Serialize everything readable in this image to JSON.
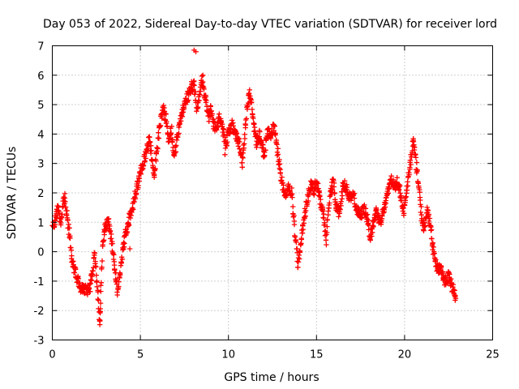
{
  "chart_data": {
    "type": "scatter",
    "title": "Day 053 of 2022, Sidereal Day-to-day VTEC variation (SDTVAR) for receiver lord",
    "xlabel": "GPS time / hours",
    "ylabel": "SDTVAR / TECUs",
    "xlim": [
      0,
      25
    ],
    "ylim": [
      -3,
      7
    ],
    "x_ticks": [
      0,
      5,
      10,
      15,
      20,
      25
    ],
    "y_ticks": [
      -3,
      -2,
      -1,
      0,
      1,
      2,
      3,
      4,
      5,
      6,
      7
    ],
    "grid": true,
    "marker": "+",
    "series": [
      {
        "name": "SDTVAR",
        "color": "#ff0000",
        "trace": [
          [
            0.0,
            0.8
          ],
          [
            0.2,
            1.2
          ],
          [
            0.35,
            1.5
          ],
          [
            0.5,
            0.9
          ],
          [
            0.6,
            1.6
          ],
          [
            0.7,
            1.8
          ],
          [
            0.85,
            1.2
          ],
          [
            1.0,
            0.5
          ],
          [
            1.1,
            -0.2
          ],
          [
            1.25,
            -0.6
          ],
          [
            1.4,
            -0.9
          ],
          [
            1.6,
            -1.2
          ],
          [
            1.8,
            -1.3
          ],
          [
            2.1,
            -1.3
          ],
          [
            2.3,
            -0.6
          ],
          [
            2.4,
            -0.1
          ],
          [
            2.5,
            -0.8
          ],
          [
            2.6,
            -1.6
          ],
          [
            2.7,
            -2.4
          ],
          [
            2.75,
            -1.5
          ],
          [
            2.85,
            0.1
          ],
          [
            3.0,
            0.9
          ],
          [
            3.2,
            1.0
          ],
          [
            3.4,
            0.2
          ],
          [
            3.55,
            -0.6
          ],
          [
            3.7,
            -1.3
          ],
          [
            3.85,
            -0.7
          ],
          [
            4.0,
            0.1
          ],
          [
            4.2,
            0.7
          ],
          [
            4.4,
            1.2
          ],
          [
            4.6,
            1.6
          ],
          [
            4.8,
            2.2
          ],
          [
            4.95,
            2.5
          ],
          [
            5.1,
            2.9
          ],
          [
            5.3,
            3.3
          ],
          [
            5.5,
            3.8
          ],
          [
            5.65,
            3.2
          ],
          [
            5.8,
            2.6
          ],
          [
            5.95,
            3.5
          ],
          [
            6.1,
            4.2
          ],
          [
            6.3,
            4.9
          ],
          [
            6.45,
            4.5
          ],
          [
            6.6,
            3.8
          ],
          [
            6.75,
            4.2
          ],
          [
            6.9,
            3.2
          ],
          [
            7.1,
            3.9
          ],
          [
            7.3,
            4.6
          ],
          [
            7.5,
            5.0
          ],
          [
            7.7,
            5.3
          ],
          [
            7.9,
            5.6
          ],
          [
            8.05,
            5.7
          ],
          [
            8.2,
            4.8
          ],
          [
            8.35,
            5.3
          ],
          [
            8.5,
            5.9
          ],
          [
            8.6,
            5.5
          ],
          [
            8.75,
            5.0
          ],
          [
            8.9,
            4.6
          ],
          [
            9.0,
            4.9
          ],
          [
            9.15,
            4.3
          ],
          [
            9.3,
            4.2
          ],
          [
            9.5,
            4.6
          ],
          [
            9.7,
            4.1
          ],
          [
            9.85,
            3.6
          ],
          [
            10.0,
            4.1
          ],
          [
            10.2,
            4.3
          ],
          [
            10.4,
            4.0
          ],
          [
            10.6,
            3.7
          ],
          [
            10.8,
            3.0
          ],
          [
            11.0,
            4.6
          ],
          [
            11.15,
            5.4
          ],
          [
            11.3,
            5.0
          ],
          [
            11.45,
            4.2
          ],
          [
            11.6,
            3.7
          ],
          [
            11.75,
            4.0
          ],
          [
            11.9,
            3.6
          ],
          [
            12.05,
            3.2
          ],
          [
            12.2,
            4.2
          ],
          [
            12.4,
            3.9
          ],
          [
            12.6,
            4.3
          ],
          [
            12.75,
            3.6
          ],
          [
            12.9,
            2.9
          ],
          [
            13.05,
            2.3
          ],
          [
            13.2,
            1.9
          ],
          [
            13.4,
            2.2
          ],
          [
            13.6,
            2.0
          ],
          [
            13.75,
            0.8
          ],
          [
            13.85,
            0.2
          ],
          [
            13.95,
            -0.5
          ],
          [
            14.1,
            0.3
          ],
          [
            14.25,
            0.9
          ],
          [
            14.4,
            1.5
          ],
          [
            14.55,
            2.0
          ],
          [
            14.7,
            2.3
          ],
          [
            14.85,
            2.1
          ],
          [
            15.0,
            2.4
          ],
          [
            15.2,
            1.8
          ],
          [
            15.4,
            1.2
          ],
          [
            15.55,
            0.4
          ],
          [
            15.65,
            1.2
          ],
          [
            15.8,
            2.0
          ],
          [
            15.95,
            2.4
          ],
          [
            16.1,
            1.6
          ],
          [
            16.3,
            1.3
          ],
          [
            16.5,
            2.3
          ],
          [
            16.7,
            2.2
          ],
          [
            16.9,
            1.8
          ],
          [
            17.1,
            1.9
          ],
          [
            17.3,
            1.4
          ],
          [
            17.5,
            1.2
          ],
          [
            17.7,
            1.5
          ],
          [
            17.9,
            1.1
          ],
          [
            18.05,
            0.5
          ],
          [
            18.2,
            0.9
          ],
          [
            18.4,
            1.4
          ],
          [
            18.6,
            1.0
          ],
          [
            18.75,
            1.3
          ],
          [
            18.9,
            1.6
          ],
          [
            19.05,
            2.0
          ],
          [
            19.2,
            2.5
          ],
          [
            19.4,
            2.2
          ],
          [
            19.6,
            2.4
          ],
          [
            19.8,
            1.9
          ],
          [
            19.95,
            1.3
          ],
          [
            20.1,
            2.1
          ],
          [
            20.25,
            2.6
          ],
          [
            20.4,
            3.4
          ],
          [
            20.5,
            3.8
          ],
          [
            20.6,
            3.3
          ],
          [
            20.7,
            2.8
          ],
          [
            20.8,
            2.2
          ],
          [
            20.9,
            1.6
          ],
          [
            21.0,
            1.0
          ],
          [
            21.15,
            0.8
          ],
          [
            21.3,
            1.5
          ],
          [
            21.45,
            0.9
          ],
          [
            21.6,
            0.2
          ],
          [
            21.75,
            -0.4
          ],
          [
            21.9,
            -0.6
          ],
          [
            22.05,
            -0.5
          ],
          [
            22.2,
            -0.9
          ],
          [
            22.35,
            -1.0
          ],
          [
            22.5,
            -0.8
          ],
          [
            22.7,
            -1.2
          ],
          [
            22.85,
            -1.4
          ],
          [
            22.9,
            -1.7
          ]
        ],
        "outliers": [
          [
            8.05,
            6.85
          ],
          [
            8.15,
            6.8
          ],
          [
            8.55,
            6.0
          ],
          [
            4.4,
            0.1
          ],
          [
            9.8,
            3.3
          ],
          [
            11.2,
            5.5
          ]
        ]
      }
    ]
  }
}
